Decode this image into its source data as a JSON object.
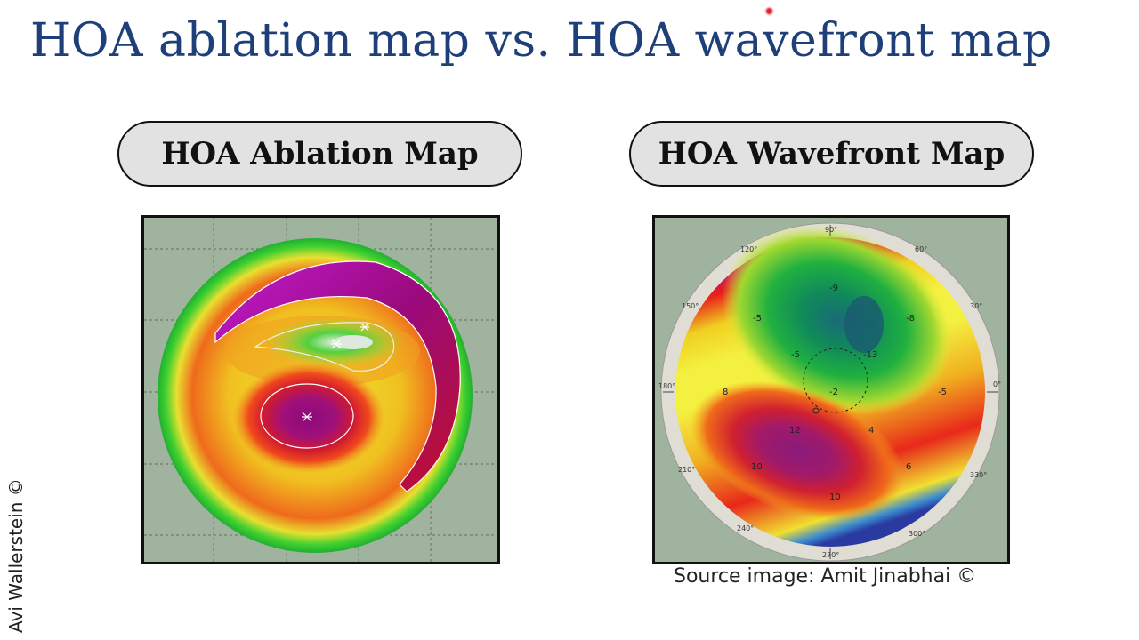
{
  "title": "HOA ablation map vs. HOA wavefront map",
  "left_panel": {
    "label": "HOA Ablation Map"
  },
  "right_panel": {
    "label": "HOA Wavefront Map",
    "degree_ticks": [
      "90°",
      "60°",
      "30°",
      "0°",
      "330°",
      "300°",
      "270°",
      "240°",
      "210°",
      "180°",
      "150°",
      "120°"
    ],
    "contour_values": [
      "-9",
      "-5",
      "-8",
      "-5",
      "-13",
      "-5",
      "-2",
      "8",
      "12",
      "4",
      "10",
      "6",
      "10"
    ]
  },
  "caption": "Source image: Amit Jinabhai ©",
  "copyright": "Avi Wallerstein ©"
}
